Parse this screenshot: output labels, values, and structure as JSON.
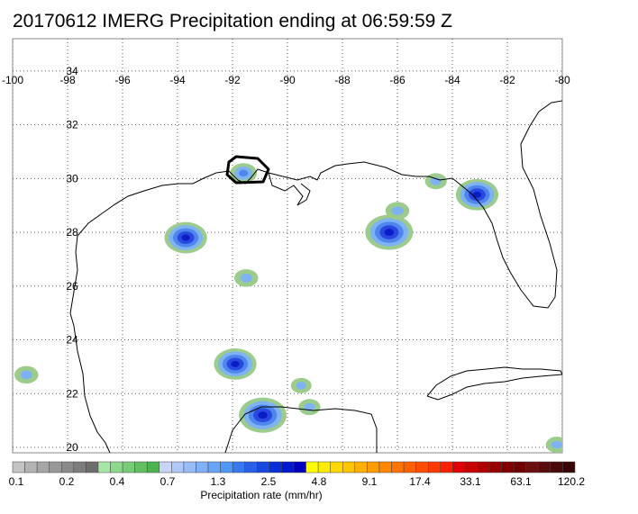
{
  "title": "20170612 IMERG Precipitation ending at 06:59:59 Z",
  "map": {
    "lon_range": [
      -100,
      -80
    ],
    "lat_range": [
      19.8,
      35.2
    ],
    "lon_ticks": [
      -100,
      -98,
      -96,
      -94,
      -92,
      -90,
      -88,
      -86,
      -84,
      -82,
      -80
    ],
    "lat_ticks": [
      20,
      22,
      24,
      26,
      28,
      30,
      32,
      34
    ],
    "lon_tick_labels": [
      "-100",
      "-98",
      "-96",
      "-94",
      "-92",
      "-90",
      "-88",
      "-86",
      "-84",
      "-82",
      "-80"
    ],
    "lat_tick_labels": [
      "20",
      "22",
      "24",
      "26",
      "28",
      "30",
      "32",
      "34"
    ],
    "grid": true,
    "highlight_region": "black outline near -91.6, 30.2",
    "precip_cells": [
      {
        "lon": -91.6,
        "lat": 30.2,
        "intensity": 1.0
      },
      {
        "lon": -93.7,
        "lat": 27.8,
        "intensity": 2.5
      },
      {
        "lon": -91.5,
        "lat": 26.3,
        "intensity": 0.7
      },
      {
        "lon": -91.9,
        "lat": 23.1,
        "intensity": 2.5
      },
      {
        "lon": -99.5,
        "lat": 22.7,
        "intensity": 0.7
      },
      {
        "lon": -90.9,
        "lat": 21.2,
        "intensity": 3.0
      },
      {
        "lon": -89.2,
        "lat": 21.5,
        "intensity": 0.5
      },
      {
        "lon": -89.5,
        "lat": 22.3,
        "intensity": 0.4
      },
      {
        "lon": -86.3,
        "lat": 28.0,
        "intensity": 3.0
      },
      {
        "lon": -86.0,
        "lat": 28.8,
        "intensity": 0.7
      },
      {
        "lon": -84.6,
        "lat": 29.9,
        "intensity": 0.5
      },
      {
        "lon": -83.1,
        "lat": 29.4,
        "intensity": 2.5
      },
      {
        "lon": -80.2,
        "lat": 20.1,
        "intensity": 0.5
      }
    ]
  },
  "colorbar": {
    "colors": [
      "#c4c4c4",
      "#b4b4b4",
      "#a6a6a6",
      "#989898",
      "#8a8a8a",
      "#7c7c7c",
      "#6e6e6e",
      "#a6e6a6",
      "#8ed88e",
      "#78cc78",
      "#62c062",
      "#4cb44c",
      "#c8d4f8",
      "#b0c8f8",
      "#98bcf8",
      "#80b0f8",
      "#68a4f8",
      "#5098f8",
      "#3878f0",
      "#2860e8",
      "#1848e0",
      "#0830d8",
      "#0018d0",
      "#0000c0",
      "#ffff00",
      "#ffec00",
      "#ffd800",
      "#ffc400",
      "#ffb000",
      "#ff9c00",
      "#ff8800",
      "#ff7400",
      "#ff6000",
      "#ff4c00",
      "#ff3800",
      "#ff2000",
      "#e00000",
      "#c80000",
      "#b00000",
      "#980000",
      "#800000",
      "#700000",
      "#6a1010",
      "#5a0c0c",
      "#4a0808",
      "#3a0404"
    ],
    "tick_labels": [
      "0.1",
      "0.2",
      "0.4",
      "0.7",
      "1.3",
      "2.5",
      "4.8",
      "9.1",
      "17.4",
      "33.1",
      "63.1",
      "120.2"
    ],
    "label": "Precipitation rate (mm/hr)"
  }
}
